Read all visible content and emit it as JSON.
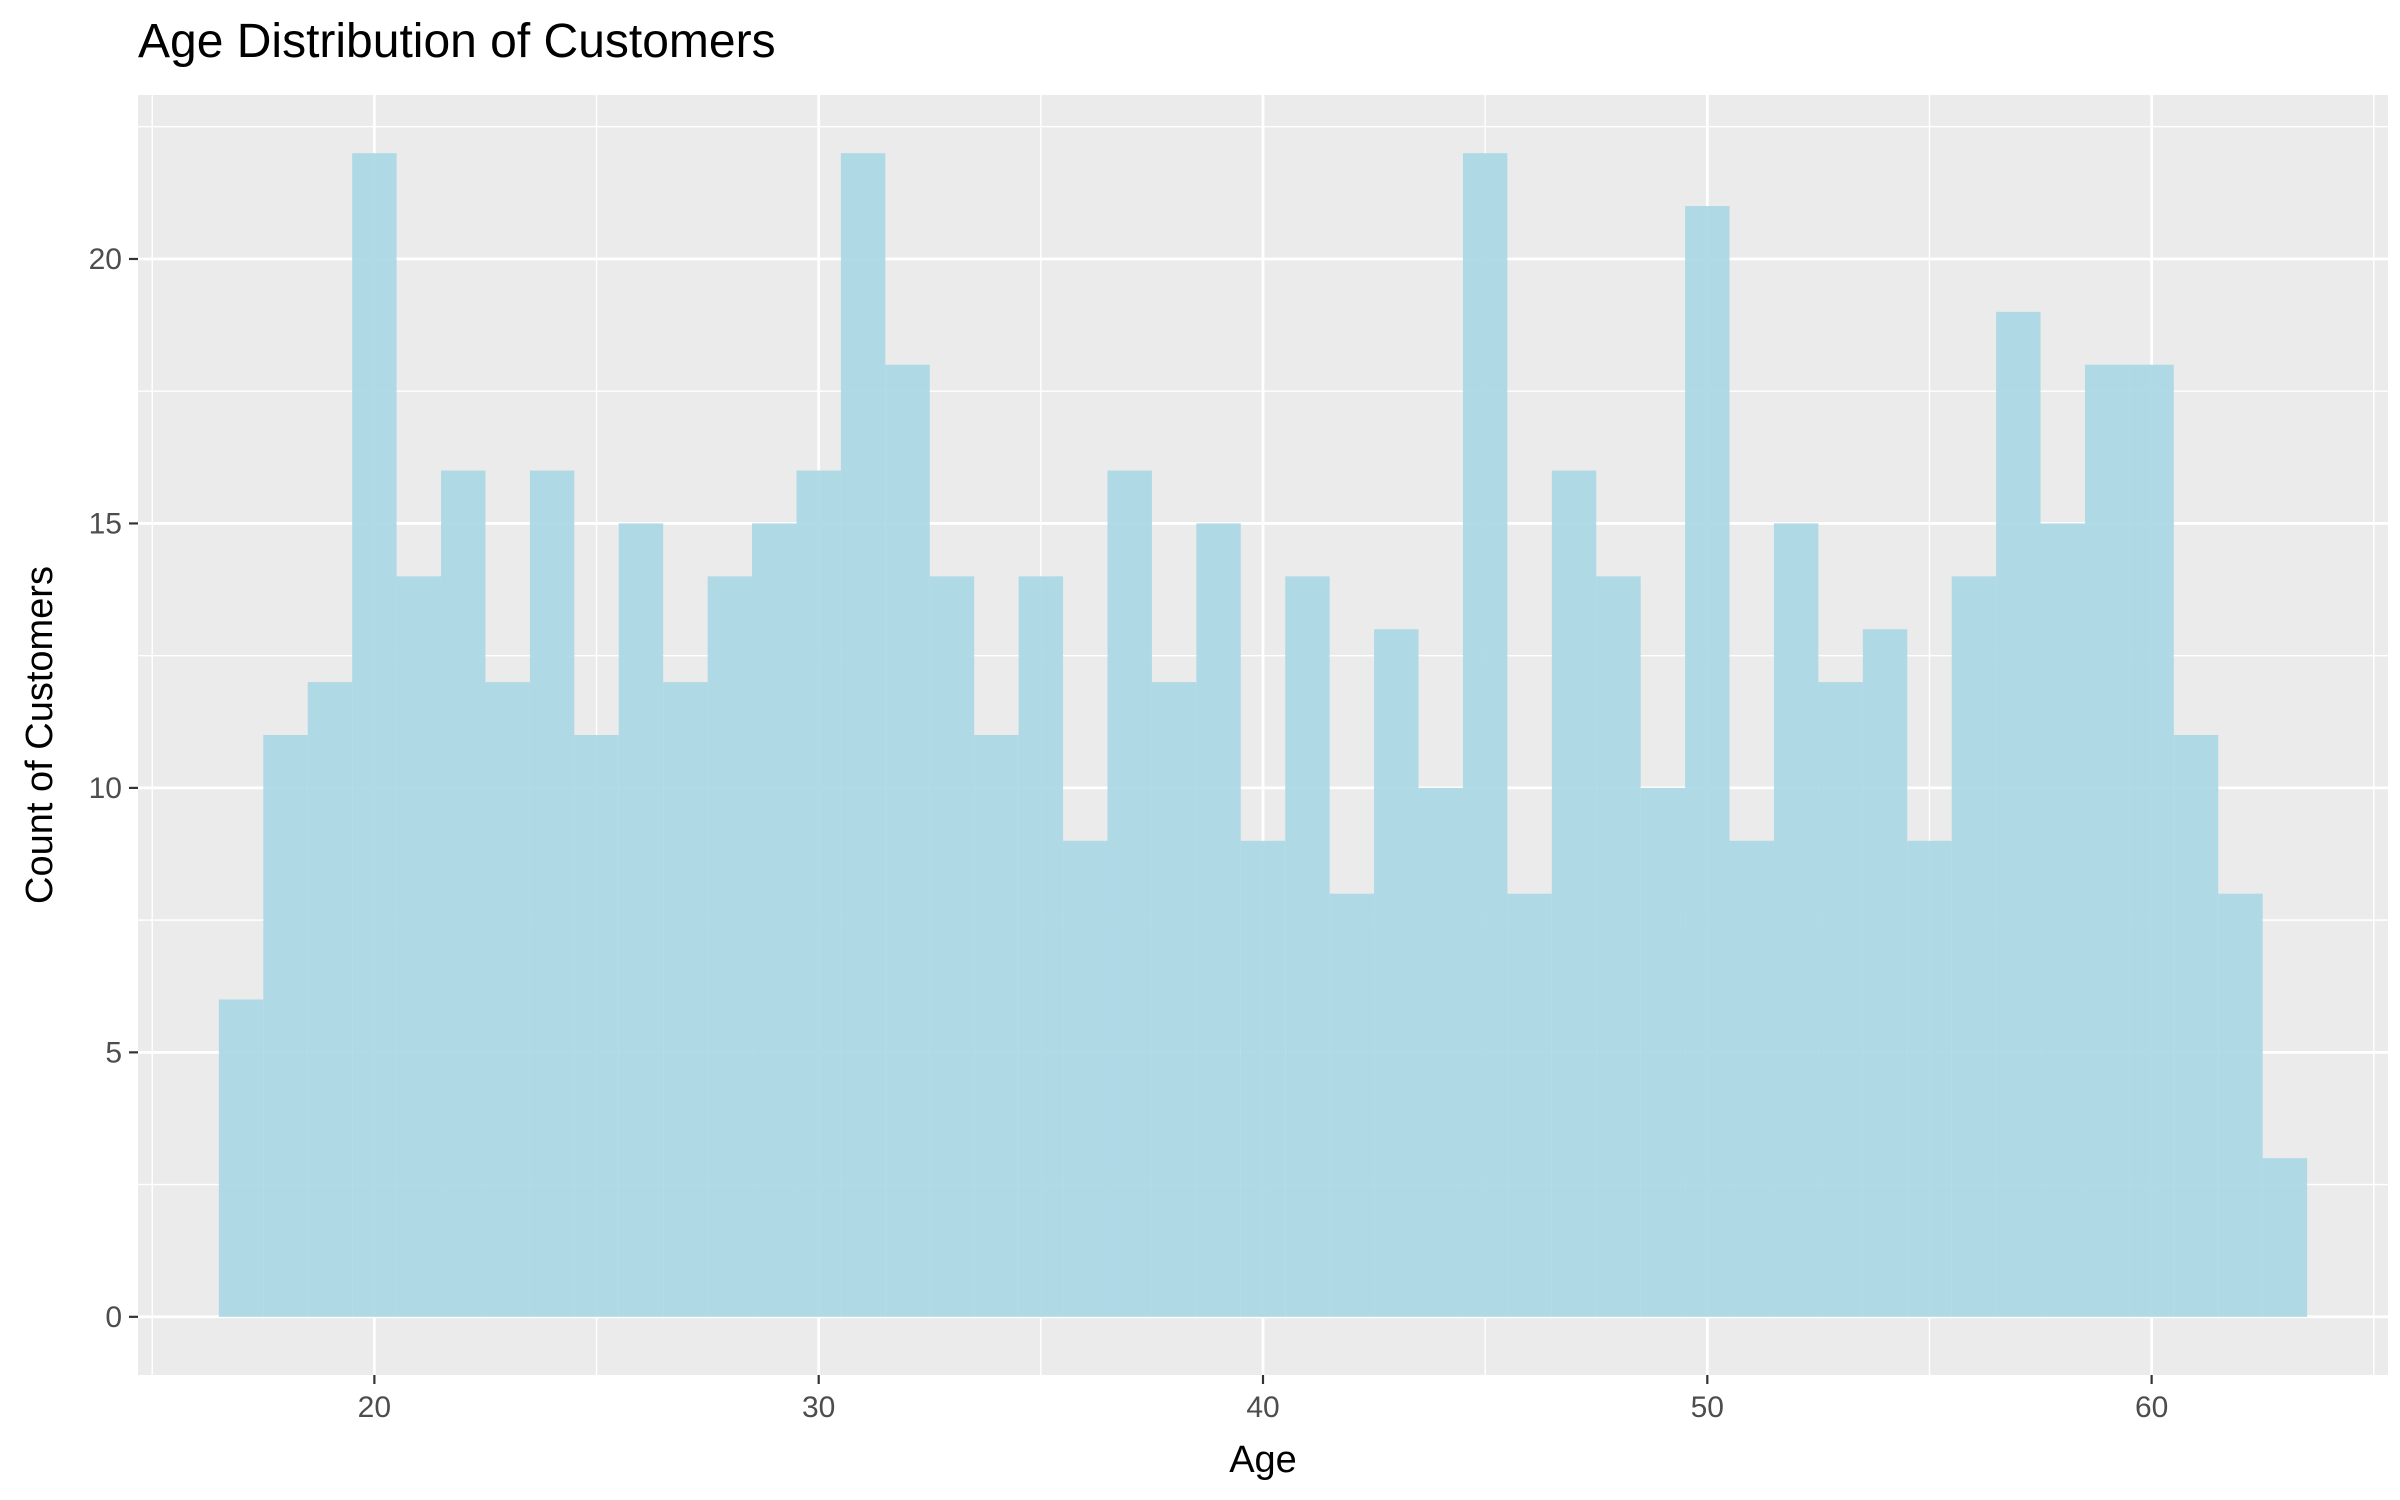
{
  "chart_data": {
    "type": "bar",
    "title": "Age Distribution of Customers",
    "xlabel": "Age",
    "ylabel": "Count of Customers",
    "bin_width": 1,
    "x": [
      17,
      18,
      19,
      20,
      21,
      22,
      23,
      24,
      25,
      26,
      27,
      28,
      29,
      30,
      31,
      32,
      33,
      34,
      35,
      36,
      37,
      38,
      39,
      40,
      41,
      42,
      43,
      44,
      45,
      46,
      47,
      48,
      49,
      50,
      51,
      52,
      53,
      54,
      55,
      56,
      57,
      58,
      59,
      60,
      61,
      62,
      63
    ],
    "values": [
      6,
      11,
      12,
      22,
      14,
      16,
      12,
      16,
      11,
      15,
      12,
      14,
      15,
      16,
      22,
      18,
      14,
      11,
      14,
      9,
      16,
      12,
      15,
      9,
      14,
      8,
      13,
      10,
      22,
      8,
      16,
      14,
      10,
      21,
      9,
      15,
      12,
      13,
      9,
      14,
      19,
      15,
      18,
      18,
      11,
      8,
      3
    ],
    "xlim": [
      14.68,
      65.32
    ],
    "ylim": [
      -1.1,
      23.1
    ],
    "x_ticks": [
      20,
      30,
      40,
      50,
      60
    ],
    "y_ticks": [
      0,
      5,
      10,
      15,
      20
    ],
    "grid": true,
    "legend": "none",
    "colors": {
      "bar_fill": "#ADD8E6",
      "panel_background": "#EBEBEB",
      "grid_major": "#FFFFFF",
      "tick_label": "#4D4D4D"
    }
  }
}
